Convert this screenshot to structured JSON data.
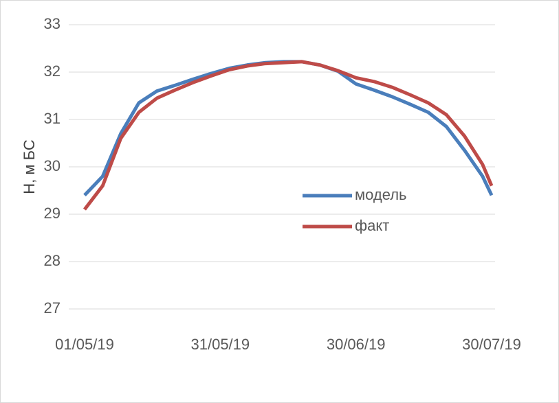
{
  "chart_data": {
    "type": "line",
    "y_label": "Н, м БС",
    "x": [
      "01/05/19",
      "05/05/19",
      "09/05/19",
      "13/05/19",
      "17/05/19",
      "21/05/19",
      "25/05/19",
      "29/05/19",
      "02/06/19",
      "06/06/19",
      "10/06/19",
      "14/06/19",
      "18/06/19",
      "22/06/19",
      "26/06/19",
      "30/06/19",
      "04/07/19",
      "08/07/19",
      "12/07/19",
      "16/07/19",
      "20/07/19",
      "24/07/19",
      "28/07/19",
      "30/07/19"
    ],
    "series": [
      {
        "name": "модель",
        "color": "#4a7ebb",
        "values": [
          29.4,
          29.8,
          30.7,
          31.35,
          31.6,
          31.72,
          31.85,
          31.97,
          32.08,
          32.15,
          32.2,
          32.22,
          32.22,
          32.15,
          32.02,
          31.75,
          31.62,
          31.48,
          31.32,
          31.15,
          30.85,
          30.35,
          29.8,
          29.4
        ]
      },
      {
        "name": "факт",
        "color": "#be4b48",
        "values": [
          29.1,
          29.6,
          30.6,
          31.15,
          31.45,
          31.62,
          31.78,
          31.92,
          32.05,
          32.13,
          32.18,
          32.2,
          32.22,
          32.15,
          32.03,
          31.88,
          31.8,
          31.68,
          31.52,
          31.35,
          31.1,
          30.65,
          30.05,
          29.6
        ]
      }
    ],
    "xlim": [
      "01/05/19",
      "30/07/19"
    ],
    "xticks": [
      "01/05/19",
      "31/05/19",
      "30/06/19",
      "30/07/19"
    ],
    "ylim": [
      27,
      33
    ],
    "yticks": [
      27,
      28,
      29,
      30,
      31,
      32,
      33
    ],
    "grid": true,
    "legend": "right"
  }
}
